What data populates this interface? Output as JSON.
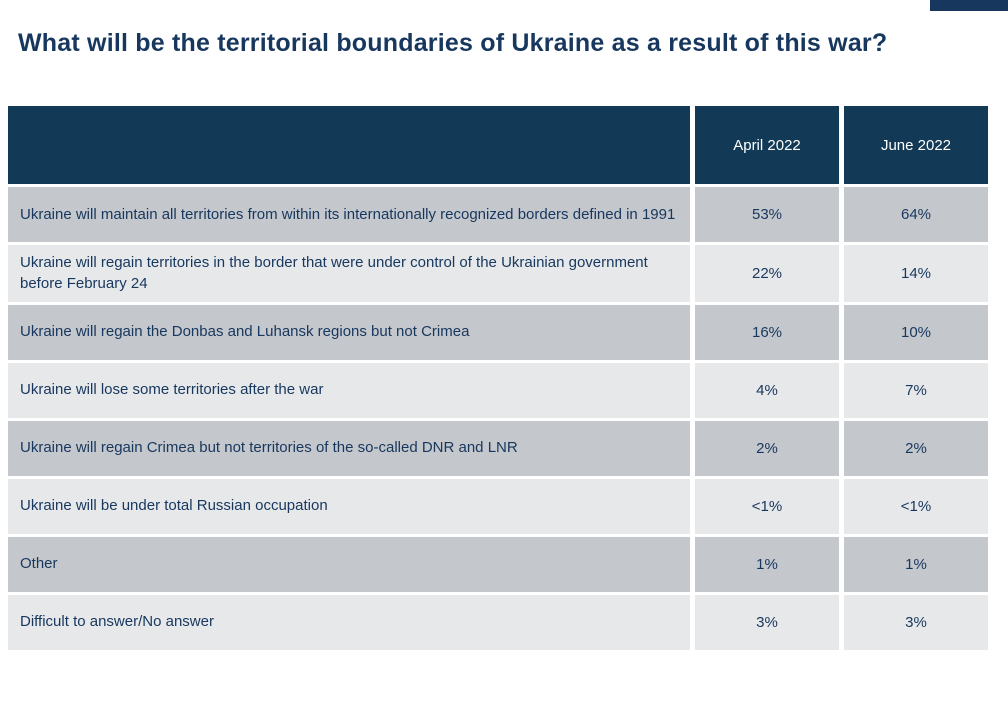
{
  "page": {
    "title": "What will be the territorial boundaries of Ukraine as a result of this war?"
  },
  "colors": {
    "accent_navy": "#17375E",
    "header_bg": "#123A56",
    "row_dark": "#C4C7CC",
    "row_light": "#E7E8EA",
    "text": "#17375E"
  },
  "chart_data": {
    "type": "table",
    "title": "What will be the territorial boundaries of Ukraine as a result of this war?",
    "columns": [
      "April 2022",
      "June 2022"
    ],
    "rows": [
      {
        "label": "Ukraine will maintain all territories from within its internationally recognized borders defined in 1991",
        "april": "53%",
        "june": "64%"
      },
      {
        "label": "Ukraine will regain territories in the border that were under control of the Ukrainian government before February 24",
        "april": "22%",
        "june": "14%"
      },
      {
        "label": "Ukraine will regain the Donbas and Luhansk regions but not Crimea",
        "april": "16%",
        "june": "10%"
      },
      {
        "label": "Ukraine will lose some territories after the war",
        "april": "4%",
        "june": "7%"
      },
      {
        "label": "Ukraine will regain Crimea but not territories of the so-called DNR and LNR",
        "april": "2%",
        "june": "2%"
      },
      {
        "label": "Ukraine will be under total Russian occupation",
        "april": "<1%",
        "june": "<1%"
      },
      {
        "label": "Other",
        "april": "1%",
        "june": "1%"
      },
      {
        "label": "Difficult to answer/No answer",
        "april": "3%",
        "june": "3%"
      }
    ]
  }
}
